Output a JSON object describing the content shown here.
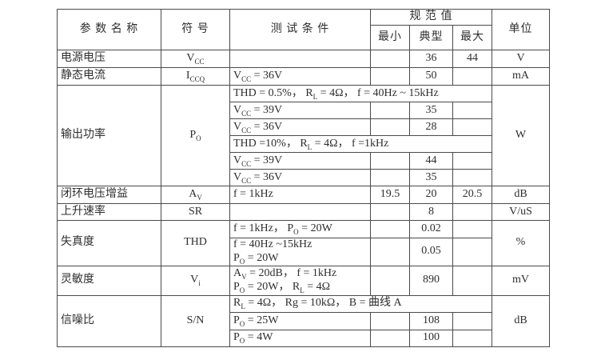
{
  "page": {
    "background": "#ffffff",
    "border_color": "#4a4a4a",
    "text_color": "#2e2e2e"
  },
  "table": {
    "header": {
      "param": "参 数 名 称",
      "symbol": "符 号",
      "condition": "测 试 条 件",
      "spec_group": "规 范 值",
      "min": "最小",
      "typ": "典型",
      "max": "最大",
      "unit": "单位"
    },
    "rows": [
      {
        "param": "电源电压",
        "symbol": "V_{CC}",
        "cond": "",
        "min": "",
        "typ": "36",
        "max": "",
        "unit": "V"
      },
      {
        "param": "静态电流",
        "symbol": "I_{CCQ}",
        "cond": "V_{CC} = 36V",
        "min": "",
        "typ": "50",
        "max": "",
        "unit": "mA"
      },
      {
        "param": "输出功率",
        "symbol": "P_{O}",
        "cond_span": "THD = 0.5%， R_{L} = 4Ω， f = 40Hz ~ 15kHz",
        "unit": "W"
      },
      {
        "cond": "V_{CC} = 39V",
        "min": "",
        "typ": "35",
        "max": ""
      },
      {
        "cond": "V_{CC} = 36V",
        "min": "",
        "typ": "28",
        "max": ""
      },
      {
        "cond_span": "THD =10%， R_{L} = 4Ω， f =1kHz"
      },
      {
        "cond": "V_{CC} = 39V",
        "min": "",
        "typ": "44",
        "max": ""
      },
      {
        "cond": "V_{CC} = 36V",
        "min": "",
        "typ": "35",
        "max": ""
      },
      {
        "param": "闭环电压增益",
        "symbol": "A_{V}",
        "cond": "f = 1kHz",
        "min": "19.5",
        "typ": "20",
        "max": "20.5",
        "unit": "dB"
      },
      {
        "param": "上升速率",
        "symbol": "SR",
        "cond": "",
        "min": "",
        "typ": "8",
        "max": "",
        "unit": "V/uS"
      },
      {
        "param": "失真度",
        "symbol": "THD",
        "cond": "f = 1kHz， P_{O} = 20W",
        "min": "",
        "typ": "0.02",
        "max": "",
        "unit": "%"
      },
      {
        "cond": "f = 40Hz ~15kHz\nP_{O} = 20W",
        "min": "",
        "typ": "0.05",
        "max": ""
      },
      {
        "param": "灵敏度",
        "symbol": "V_{i}",
        "cond": "A_{V} = 20dB， f = 1kHz\nP_{O} = 20W， R_{L} = 4Ω",
        "min": "",
        "typ": "890",
        "max": "",
        "unit": "mV"
      },
      {
        "param": "信噪比",
        "symbol": "S/N",
        "cond_span": "R_{L} = 4Ω， Rg = 10kΩ， B =  曲线 A",
        "unit": "dB"
      },
      {
        "cond": "P_{O} = 25W",
        "min": "",
        "typ": "108",
        "max": ""
      },
      {
        "cond": "P_{O} = 4W",
        "min": "",
        "typ": "100",
        "max": ""
      }
    ],
    "supply_voltage_max": "44"
  }
}
